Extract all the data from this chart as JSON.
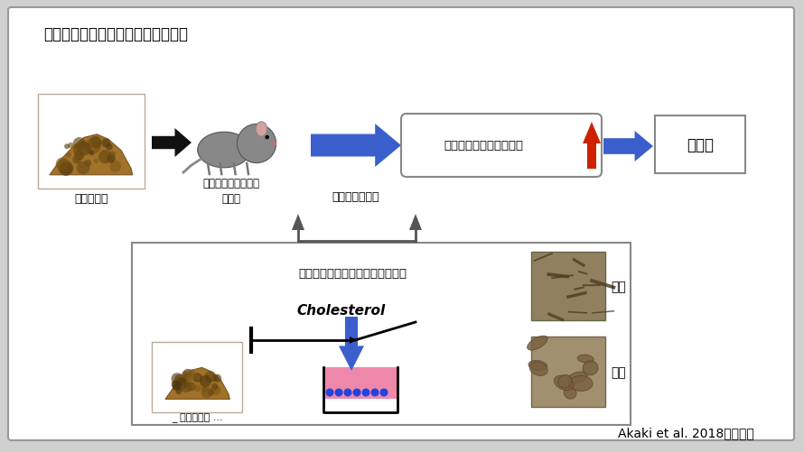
{
  "title": "防風通聖散の肥満改善のメカニズム",
  "title_fontsize": 12,
  "citation": "Akaki et al. 2018より引用",
  "citation_fontsize": 10,
  "labels": {
    "bofu": "防風通聖散",
    "mouse_label": "高脂肪食を摂取した\nネズミ",
    "absorption": "脂質の吸収抑制",
    "feces": "糞中への脂質の排泄促進",
    "anti_obesity": "抗肥満",
    "intestinal": "腸管でのコレステロール吸収抑制",
    "cholesterol": "Cholesterol",
    "bofu2": "_ 防風通聖散 ...",
    "kikyo": "桔梗",
    "shoga": "生姜"
  },
  "blue": "#3a5fcd",
  "red": "#cc2200",
  "black": "#1a1a1a",
  "gray": "#777777",
  "white": "#ffffff",
  "powder_color": "#a0722a",
  "powder_dark": "#7a5520",
  "powder_light": "#c8a070"
}
